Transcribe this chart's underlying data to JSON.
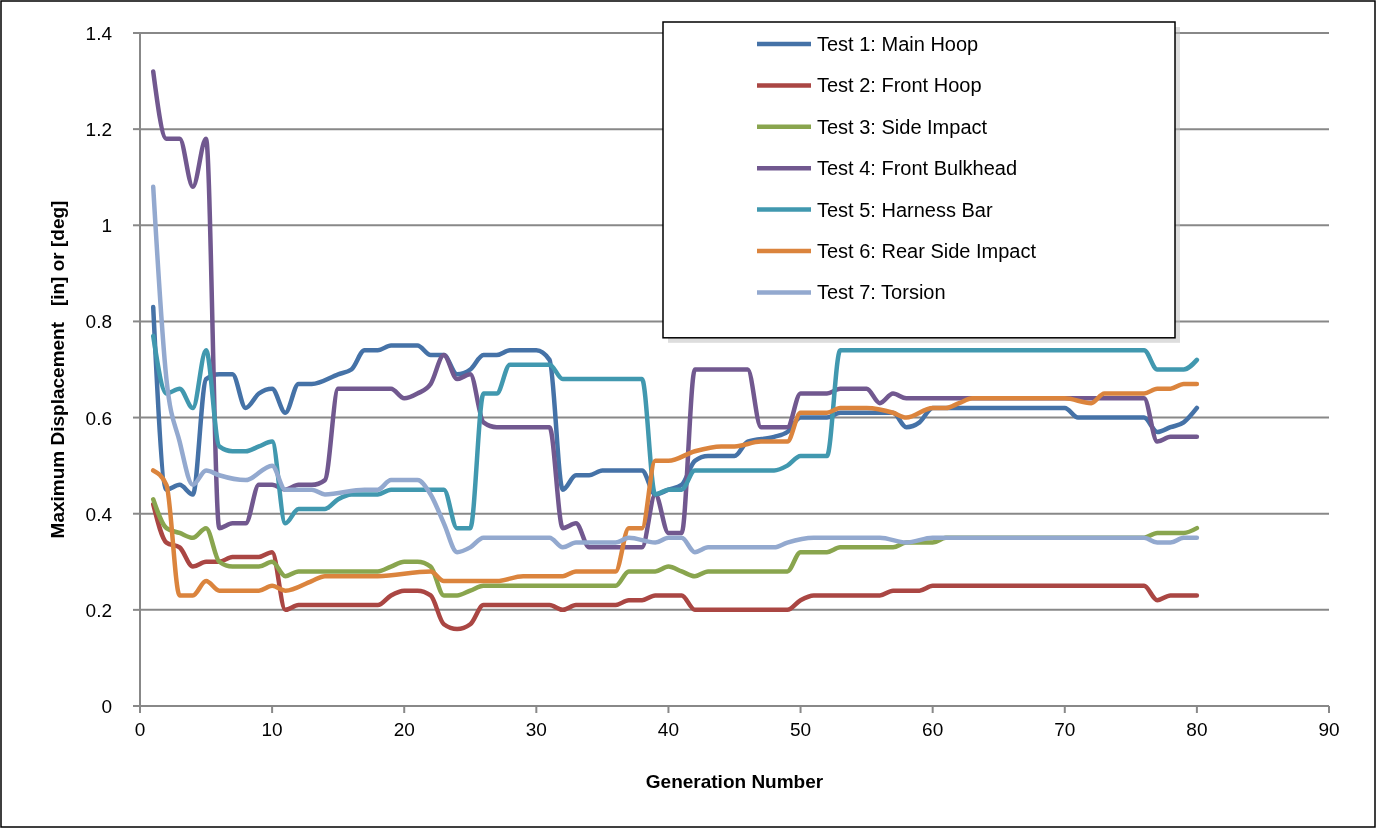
{
  "chart_data": {
    "type": "line",
    "xlabel": "Generation Number",
    "ylabel": "Maximum Displacement   [in] or [deg]",
    "xlim": [
      0,
      90
    ],
    "xticks": [
      0,
      10,
      20,
      30,
      40,
      50,
      60,
      70,
      80,
      90
    ],
    "ylim": [
      0,
      1.4
    ],
    "yticks": [
      0,
      0.2,
      0.4,
      0.6,
      0.8,
      1,
      1.2,
      1.4
    ],
    "grid": "y",
    "legend": "top right",
    "marker": "none",
    "line_style": "solid",
    "series": [
      {
        "name": "Test 1: Main Hoop",
        "color": "#4572a7",
        "x": [
          1,
          2,
          3,
          4,
          5,
          6,
          7,
          8,
          9,
          10,
          11,
          12,
          13,
          15,
          16,
          17,
          18,
          19,
          21,
          22,
          23,
          24,
          25,
          26,
          27,
          28,
          30,
          31,
          32,
          33,
          34,
          35,
          37,
          38,
          39,
          40,
          41,
          42,
          43,
          45,
          46,
          48,
          49,
          50,
          51,
          52,
          53,
          55,
          56,
          57,
          58,
          59,
          60,
          70,
          71,
          76,
          77,
          78,
          79,
          80
        ],
        "values": [
          0.83,
          0.45,
          0.46,
          0.44,
          0.68,
          0.69,
          0.69,
          0.62,
          0.65,
          0.66,
          0.61,
          0.67,
          0.67,
          0.69,
          0.7,
          0.74,
          0.74,
          0.75,
          0.75,
          0.73,
          0.73,
          0.69,
          0.7,
          0.73,
          0.73,
          0.74,
          0.74,
          0.72,
          0.45,
          0.48,
          0.48,
          0.49,
          0.49,
          0.49,
          0.44,
          0.45,
          0.46,
          0.51,
          0.52,
          0.52,
          0.55,
          0.56,
          0.57,
          0.6,
          0.6,
          0.6,
          0.61,
          0.61,
          0.61,
          0.61,
          0.58,
          0.59,
          0.62,
          0.62,
          0.6,
          0.6,
          0.57,
          0.58,
          0.59,
          0.62
        ]
      },
      {
        "name": "Test 2: Front Hoop",
        "color": "#aa4643",
        "x": [
          1,
          2,
          3,
          4,
          5,
          6,
          7,
          9,
          10,
          11,
          12,
          17,
          18,
          19,
          20,
          21,
          22,
          23,
          24,
          25,
          26,
          31,
          32,
          33,
          36,
          37,
          38,
          39,
          41,
          42,
          48,
          49,
          50,
          51,
          55,
          56,
          57,
          59,
          60,
          76,
          77,
          78,
          80
        ],
        "values": [
          0.42,
          0.34,
          0.33,
          0.29,
          0.3,
          0.3,
          0.31,
          0.31,
          0.32,
          0.2,
          0.21,
          0.21,
          0.21,
          0.23,
          0.24,
          0.24,
          0.23,
          0.17,
          0.16,
          0.17,
          0.21,
          0.21,
          0.2,
          0.21,
          0.21,
          0.22,
          0.22,
          0.23,
          0.23,
          0.2,
          0.2,
          0.2,
          0.22,
          0.23,
          0.23,
          0.23,
          0.24,
          0.24,
          0.25,
          0.25,
          0.22,
          0.23,
          0.23
        ]
      },
      {
        "name": "Test 3: Side Impact",
        "color": "#89a54e",
        "x": [
          1,
          2,
          3,
          4,
          5,
          6,
          7,
          9,
          10,
          11,
          12,
          17,
          18,
          19,
          20,
          21,
          22,
          23,
          24,
          25,
          26,
          36,
          37,
          39,
          40,
          41,
          42,
          43,
          48,
          49,
          50,
          51,
          52,
          53,
          57,
          58,
          60,
          61,
          76,
          77,
          79,
          80
        ],
        "values": [
          0.43,
          0.37,
          0.36,
          0.35,
          0.37,
          0.3,
          0.29,
          0.29,
          0.3,
          0.27,
          0.28,
          0.28,
          0.28,
          0.29,
          0.3,
          0.3,
          0.29,
          0.23,
          0.23,
          0.24,
          0.25,
          0.25,
          0.28,
          0.28,
          0.29,
          0.28,
          0.27,
          0.28,
          0.28,
          0.28,
          0.32,
          0.32,
          0.32,
          0.33,
          0.33,
          0.34,
          0.34,
          0.35,
          0.35,
          0.36,
          0.36,
          0.37
        ]
      },
      {
        "name": "Test 4: Front Bulkhead",
        "color": "#71588f",
        "x": [
          1,
          2,
          3,
          4,
          5,
          6,
          7,
          8,
          9,
          10,
          11,
          12,
          13,
          14,
          15,
          16,
          18,
          19,
          20,
          21,
          22,
          23,
          24,
          25,
          26,
          27,
          30,
          31,
          32,
          33,
          34,
          37,
          38,
          39,
          40,
          41,
          42,
          43,
          45,
          46,
          47,
          48,
          49,
          50,
          51,
          52,
          53,
          55,
          56,
          57,
          58,
          59,
          76,
          77,
          78,
          80
        ],
        "values": [
          1.32,
          1.18,
          1.18,
          1.08,
          1.18,
          0.37,
          0.38,
          0.38,
          0.46,
          0.46,
          0.45,
          0.46,
          0.46,
          0.47,
          0.66,
          0.66,
          0.66,
          0.66,
          0.64,
          0.65,
          0.67,
          0.73,
          0.68,
          0.69,
          0.59,
          0.58,
          0.58,
          0.58,
          0.37,
          0.38,
          0.33,
          0.33,
          0.33,
          0.44,
          0.36,
          0.36,
          0.7,
          0.7,
          0.7,
          0.7,
          0.58,
          0.58,
          0.58,
          0.65,
          0.65,
          0.65,
          0.66,
          0.66,
          0.63,
          0.65,
          0.64,
          0.64,
          0.64,
          0.55,
          0.56,
          0.56
        ]
      },
      {
        "name": "Test 5: Harness Bar",
        "color": "#4198af",
        "x": [
          1,
          2,
          3,
          4,
          5,
          6,
          7,
          8,
          9,
          10,
          11,
          12,
          14,
          15,
          16,
          18,
          19,
          22,
          23,
          24,
          25,
          26,
          27,
          28,
          31,
          32,
          37,
          38,
          39,
          40,
          41,
          42,
          48,
          49,
          50,
          51,
          52,
          53,
          54,
          76,
          77,
          79,
          80
        ],
        "values": [
          0.77,
          0.65,
          0.66,
          0.62,
          0.74,
          0.54,
          0.53,
          0.53,
          0.54,
          0.55,
          0.38,
          0.41,
          0.41,
          0.43,
          0.44,
          0.44,
          0.45,
          0.45,
          0.45,
          0.37,
          0.37,
          0.65,
          0.65,
          0.71,
          0.71,
          0.68,
          0.68,
          0.68,
          0.44,
          0.45,
          0.45,
          0.49,
          0.49,
          0.5,
          0.52,
          0.52,
          0.52,
          0.74,
          0.74,
          0.74,
          0.7,
          0.7,
          0.72
        ]
      },
      {
        "name": "Test 6: Rear Side Impact",
        "color": "#db843d",
        "x": [
          1,
          2,
          3,
          4,
          5,
          6,
          9,
          10,
          11,
          13,
          14,
          18,
          22,
          23,
          27,
          29,
          31,
          32,
          33,
          36,
          37,
          38,
          39,
          40,
          42,
          44,
          45,
          47,
          48,
          49,
          50,
          52,
          53,
          55,
          57,
          58,
          60,
          61,
          62,
          63,
          69,
          70,
          72,
          73,
          76,
          77,
          78,
          79,
          80
        ],
        "values": [
          0.49,
          0.46,
          0.23,
          0.23,
          0.26,
          0.24,
          0.24,
          0.25,
          0.24,
          0.26,
          0.27,
          0.27,
          0.28,
          0.26,
          0.26,
          0.27,
          0.27,
          0.27,
          0.28,
          0.28,
          0.37,
          0.37,
          0.51,
          0.51,
          0.53,
          0.54,
          0.54,
          0.55,
          0.55,
          0.55,
          0.61,
          0.61,
          0.62,
          0.62,
          0.61,
          0.6,
          0.62,
          0.62,
          0.63,
          0.64,
          0.64,
          0.64,
          0.63,
          0.65,
          0.65,
          0.66,
          0.66,
          0.67,
          0.67
        ]
      },
      {
        "name": "Test 7: Torsion",
        "color": "#93a9cf",
        "x": [
          1,
          2,
          3,
          4,
          5,
          6,
          8,
          10,
          11,
          12,
          13,
          14,
          17,
          18,
          19,
          21,
          22,
          23,
          24,
          25,
          26,
          30,
          31,
          32,
          33,
          36,
          37,
          39,
          40,
          41,
          42,
          43,
          48,
          49,
          51,
          53,
          56,
          58,
          60,
          76,
          77,
          78,
          79,
          80
        ],
        "values": [
          1.08,
          0.68,
          0.55,
          0.46,
          0.49,
          0.48,
          0.47,
          0.5,
          0.45,
          0.45,
          0.45,
          0.44,
          0.45,
          0.45,
          0.47,
          0.47,
          0.44,
          0.38,
          0.32,
          0.33,
          0.35,
          0.35,
          0.35,
          0.33,
          0.34,
          0.34,
          0.35,
          0.34,
          0.35,
          0.35,
          0.32,
          0.33,
          0.33,
          0.34,
          0.35,
          0.35,
          0.35,
          0.34,
          0.35,
          0.35,
          0.34,
          0.34,
          0.35,
          0.35
        ]
      }
    ]
  }
}
